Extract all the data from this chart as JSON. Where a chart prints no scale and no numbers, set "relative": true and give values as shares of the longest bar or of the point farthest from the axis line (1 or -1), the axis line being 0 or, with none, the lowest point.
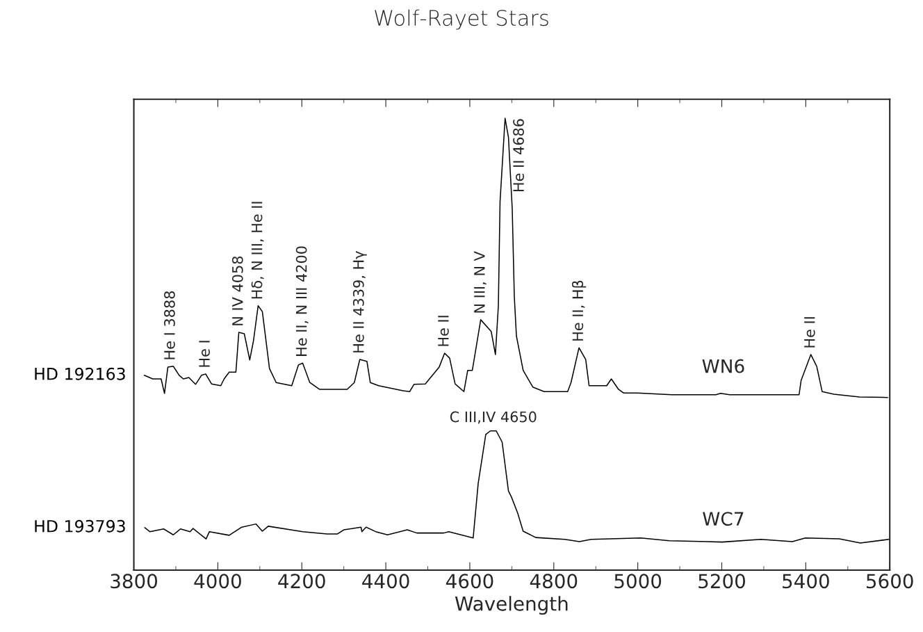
{
  "chart_data": {
    "type": "line",
    "title": "Wolf-Rayet Stars",
    "xlabel": "Wavelength",
    "relative": true,
    "xlim": [
      3800,
      5600
    ],
    "xticks": [
      3800,
      4000,
      4200,
      4400,
      4600,
      4800,
      5000,
      5200,
      5400,
      5600
    ],
    "tick_labels": "x",
    "grid": false,
    "legend": false,
    "series": [
      {
        "name": "HD 192163",
        "color": "#000000",
        "x": [
          3825,
          3845,
          3865,
          3873,
          3881,
          3894,
          3908,
          3918,
          3931,
          3947,
          3961,
          3971,
          3985,
          4007,
          4015,
          4027,
          4043,
          4050,
          4063,
          4076,
          4085,
          4096,
          4106,
          4123,
          4139,
          4176,
          4192,
          4202,
          4219,
          4242,
          4308,
          4325,
          4338,
          4355,
          4363,
          4383,
          4441,
          4457,
          4467,
          4494,
          4527,
          4540,
          4552,
          4565,
          4586,
          4595,
          4606,
          4626,
          4651,
          4661,
          4668,
          4672,
          4684,
          4692,
          4701,
          4706,
          4711,
          4727,
          4750,
          4777,
          4833,
          4841,
          4860,
          4876,
          4884,
          4926,
          4937,
          4954,
          4966,
          4999,
          5081,
          5186,
          5197,
          5219,
          5384,
          5389,
          5412,
          5426,
          5439,
          5467,
          5528,
          5595
        ],
        "values": [
          0.431,
          0.423,
          0.423,
          0.391,
          0.449,
          0.451,
          0.431,
          0.423,
          0.426,
          0.411,
          0.431,
          0.434,
          0.412,
          0.408,
          0.423,
          0.438,
          0.438,
          0.526,
          0.523,
          0.465,
          0.508,
          0.585,
          0.572,
          0.446,
          0.415,
          0.408,
          0.454,
          0.458,
          0.415,
          0.4,
          0.4,
          0.415,
          0.466,
          0.462,
          0.415,
          0.408,
          0.397,
          0.395,
          0.411,
          0.412,
          0.449,
          0.48,
          0.469,
          0.412,
          0.395,
          0.442,
          0.442,
          0.554,
          0.528,
          0.477,
          0.585,
          0.815,
          1,
          0.958,
          0.8,
          0.605,
          0.518,
          0.442,
          0.405,
          0.395,
          0.395,
          0.415,
          0.492,
          0.466,
          0.408,
          0.408,
          0.423,
          0.4,
          0.392,
          0.392,
          0.388,
          0.388,
          0.391,
          0.388,
          0.388,
          0.42,
          0.477,
          0.451,
          0.395,
          0.389,
          0.383,
          0.382
        ]
      },
      {
        "name": "HD 193793",
        "color": "#000000",
        "x": [
          3826,
          3838,
          3871,
          3894,
          3911,
          3934,
          3941,
          3972,
          3980,
          4027,
          4057,
          4091,
          4106,
          4120,
          4202,
          4260,
          4285,
          4300,
          4341,
          4343,
          4353,
          4376,
          4404,
          4451,
          4474,
          4538,
          4550,
          4608,
          4620,
          4638,
          4649,
          4663,
          4677,
          4692,
          4699,
          4714,
          4727,
          4757,
          4826,
          4861,
          4889,
          5007,
          5075,
          5201,
          5293,
          5368,
          5399,
          5480,
          5530,
          5598
        ],
        "values": [
          0.094,
          0.085,
          0.091,
          0.078,
          0.091,
          0.085,
          0.092,
          0.069,
          0.085,
          0.077,
          0.095,
          0.102,
          0.086,
          0.097,
          0.085,
          0.08,
          0.08,
          0.089,
          0.095,
          0.085,
          0.095,
          0.085,
          0.078,
          0.089,
          0.082,
          0.082,
          0.085,
          0.071,
          0.192,
          0.3,
          0.308,
          0.308,
          0.283,
          0.175,
          0.162,
          0.126,
          0.086,
          0.072,
          0.068,
          0.063,
          0.068,
          0.071,
          0.065,
          0.062,
          0.068,
          0.063,
          0.071,
          0.069,
          0.06,
          0.068
        ]
      }
    ],
    "annotations": [
      "WN6",
      "WC7",
      {
        "text": "He I 3888",
        "x": 3888,
        "y": 0.451
      },
      {
        "text": "He I",
        "x": 3971,
        "y": 0.434
      },
      {
        "text": "N IV 4058",
        "x": 4050,
        "y": 0.526
      },
      {
        "text": "Hδ, N III, He II",
        "x": 4096,
        "y": 0.585
      },
      {
        "text": "He II, N III 4200",
        "x": 4202,
        "y": 0.458
      },
      {
        "text": "He II 4339, Hγ",
        "x": 4338,
        "y": 0.466
      },
      {
        "text": "He II",
        "x": 4540,
        "y": 0.48
      },
      {
        "text": "N III, N V",
        "x": 4626,
        "y": 0.554
      },
      {
        "text": "He II 4686",
        "x": 4684,
        "y": 1
      },
      {
        "text": "He II, Hβ",
        "x": 4860,
        "y": 0.492
      },
      {
        "text": "He II",
        "x": 5412,
        "y": 0.477
      },
      {
        "text": "C III,IV 4650",
        "x": 4656,
        "y": 0.308
      }
    ]
  }
}
